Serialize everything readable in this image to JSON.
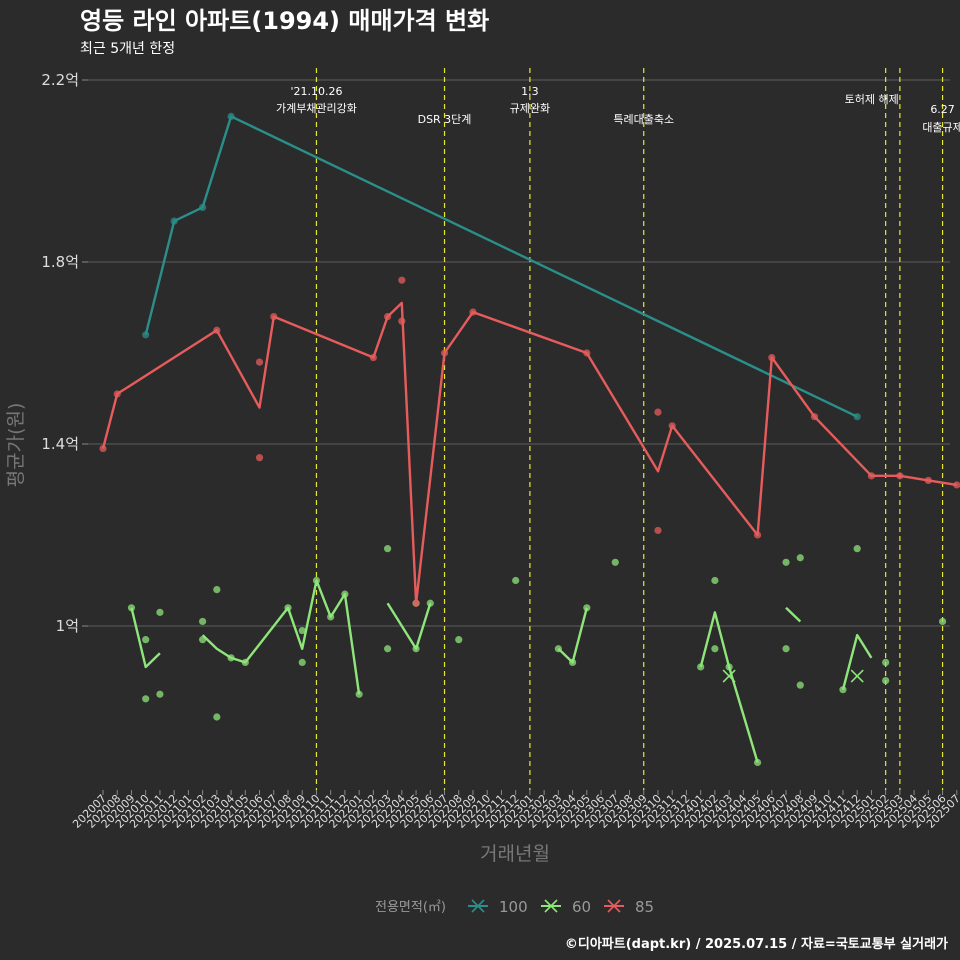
{
  "title": "영등 라인 아파트(1994) 매매가격 변화",
  "subtitle": "최근 5개년 한정",
  "caption": "©디아파트(dapt.kr) / 2025.07.15 / 자료=국토교통부 실거래가",
  "colors": {
    "bg": "#2b2b2b",
    "grid": "#5c5c5c",
    "event": "#e8e832",
    "s100": "#2a8f8a",
    "s60": "#8ee67a",
    "s85": "#e65c5c"
  },
  "chart_data": {
    "type": "line",
    "xlabel": "거래년월",
    "ylabel": "평균가(원)",
    "yticks": [
      {
        "v": 1.0,
        "label": "1억"
      },
      {
        "v": 1.4,
        "label": "1.4억"
      },
      {
        "v": 1.8,
        "label": "1.8억"
      },
      {
        "v": 2.2,
        "label": "2.2억"
      }
    ],
    "ylim": [
      0.64,
      2.22
    ],
    "ylim_unit": "억",
    "grid": true,
    "legend_position": "bottom",
    "x_categories": [
      "202007",
      "202008",
      "202009",
      "202010",
      "202011",
      "202012",
      "202101",
      "202102",
      "202103",
      "202104",
      "202105",
      "202106",
      "202107",
      "202108",
      "202109",
      "202110",
      "202111",
      "202112",
      "202201",
      "202202",
      "202203",
      "202204",
      "202205",
      "202206",
      "202207",
      "202208",
      "202209",
      "202210",
      "202211",
      "202212",
      "202301",
      "202302",
      "202303",
      "202304",
      "202305",
      "202306",
      "202307",
      "202308",
      "202309",
      "202310",
      "202311",
      "202312",
      "202401",
      "202402",
      "202403",
      "202404",
      "202405",
      "202406",
      "202407",
      "202408",
      "202409",
      "202410",
      "202411",
      "202412",
      "202501",
      "202502",
      "202503",
      "202504",
      "202505",
      "202506",
      "202507"
    ],
    "events": [
      {
        "x": "202110",
        "lines": [
          "'21.10.26",
          "가계부채관리강화"
        ]
      },
      {
        "x": "202207",
        "lines": [
          "DSR 3단계"
        ]
      },
      {
        "x": "202301",
        "lines": [
          "1.3",
          "규제완화"
        ]
      },
      {
        "x": "202309",
        "lines": [
          "특례대출축소"
        ]
      },
      {
        "x": "202502",
        "lines": [
          "토허제 해제"
        ]
      },
      {
        "x": "202503",
        "lines": []
      },
      {
        "x": "202506",
        "lines": [
          "6.27",
          "대출규제"
        ]
      }
    ],
    "legend_title": "전용면적(㎡)",
    "series": [
      {
        "name": "100",
        "color": "#2a8f8a",
        "line": [
          [
            "202010",
            1.64
          ],
          [
            "202012",
            1.89
          ],
          [
            "202102",
            1.92
          ],
          [
            "202104",
            2.12
          ],
          [
            "202412",
            1.46
          ]
        ],
        "points": [
          [
            "202010",
            1.64
          ],
          [
            "202012",
            1.89
          ],
          [
            "202102",
            1.92
          ],
          [
            "202104",
            2.12
          ],
          [
            "202412",
            1.46
          ]
        ],
        "crosses": []
      },
      {
        "name": "60",
        "color": "#8ee67a",
        "line": [
          [
            [
              "202009",
              1.04
            ],
            [
              "202010",
              0.91
            ],
            [
              "202011",
              0.94
            ]
          ],
          [
            [
              "202102",
              0.98
            ],
            [
              "202103",
              0.95
            ],
            [
              "202104",
              0.93
            ],
            [
              "202105",
              0.92
            ],
            [
              "202108",
              1.04
            ],
            [
              "202109",
              0.95
            ],
            [
              "202110",
              1.1
            ],
            [
              "202111",
              1.02
            ],
            [
              "202112",
              1.07
            ],
            [
              "202201",
              0.85
            ]
          ],
          [
            [
              "202203",
              1.05
            ],
            [
              "202205",
              0.95
            ],
            [
              "202206",
              1.05
            ]
          ],
          [
            [
              "202303",
              0.95
            ],
            [
              "202304",
              0.92
            ],
            [
              "202305",
              1.04
            ]
          ],
          [
            [
              "202401",
              0.91
            ],
            [
              "202402",
              1.03
            ],
            [
              "202403",
              0.91
            ],
            [
              "202405",
              0.7
            ]
          ],
          [
            [
              "202407",
              1.04
            ],
            [
              "202408",
              1.01
            ]
          ],
          [
            [
              "202411",
              0.86
            ],
            [
              "202412",
              0.98
            ],
            [
              "202501",
              0.93
            ]
          ]
        ],
        "points": [
          [
            "202009",
            1.04
          ],
          [
            "202010",
            0.97
          ],
          [
            "202010",
            0.84
          ],
          [
            "202011",
            1.03
          ],
          [
            "202011",
            0.85
          ],
          [
            "202102",
            1.01
          ],
          [
            "202102",
            0.97
          ],
          [
            "202103",
            1.08
          ],
          [
            "202103",
            0.8
          ],
          [
            "202104",
            0.93
          ],
          [
            "202105",
            0.92
          ],
          [
            "202108",
            1.04
          ],
          [
            "202109",
            0.99
          ],
          [
            "202109",
            0.92
          ],
          [
            "202110",
            1.1
          ],
          [
            "202111",
            1.02
          ],
          [
            "202112",
            1.07
          ],
          [
            "202201",
            0.85
          ],
          [
            "202203",
            1.17
          ],
          [
            "202203",
            0.95
          ],
          [
            "202205",
            1.05
          ],
          [
            "202205",
            0.95
          ],
          [
            "202206",
            1.05
          ],
          [
            "202208",
            0.97
          ],
          [
            "202212",
            1.1
          ],
          [
            "202303",
            0.95
          ],
          [
            "202304",
            0.92
          ],
          [
            "202305",
            1.04
          ],
          [
            "202307",
            1.14
          ],
          [
            "202401",
            0.91
          ],
          [
            "202402",
            1.1
          ],
          [
            "202402",
            0.95
          ],
          [
            "202403",
            0.91
          ],
          [
            "202405",
            0.7
          ],
          [
            "202407",
            1.14
          ],
          [
            "202407",
            0.95
          ],
          [
            "202408",
            1.15
          ],
          [
            "202408",
            0.87
          ],
          [
            "202411",
            0.86
          ],
          [
            "202412",
            1.17
          ],
          [
            "202502",
            0.88
          ],
          [
            "202502",
            0.92
          ],
          [
            "202506",
            1.01
          ]
        ],
        "crosses": [
          [
            "202403",
            0.89
          ],
          [
            "202412",
            0.89
          ]
        ]
      },
      {
        "name": "85",
        "color": "#e65c5c",
        "line": [
          [
            "202007",
            1.39
          ],
          [
            "202008",
            1.51
          ],
          [
            "202103",
            1.65
          ],
          [
            "202106",
            1.48
          ],
          [
            "202107",
            1.68
          ],
          [
            "202202",
            1.59
          ],
          [
            "202203",
            1.68
          ],
          [
            "202204",
            1.71
          ],
          [
            "202205",
            1.05
          ],
          [
            "202207",
            1.6
          ],
          [
            "202209",
            1.69
          ],
          [
            "202305",
            1.6
          ],
          [
            "202310",
            1.34
          ],
          [
            "202311",
            1.44
          ],
          [
            "202405",
            1.2
          ],
          [
            "202406",
            1.59
          ],
          [
            "202409",
            1.46
          ],
          [
            "202501",
            1.33
          ],
          [
            "202503",
            1.33
          ],
          [
            "202505",
            1.32
          ],
          [
            "202507",
            1.31
          ]
        ],
        "points": [
          [
            "202007",
            1.39
          ],
          [
            "202008",
            1.51
          ],
          [
            "202103",
            1.65
          ],
          [
            "202106",
            1.58
          ],
          [
            "202106",
            1.37
          ],
          [
            "202107",
            1.68
          ],
          [
            "202202",
            1.59
          ],
          [
            "202203",
            1.68
          ],
          [
            "202204",
            1.76
          ],
          [
            "202204",
            1.67
          ],
          [
            "202205",
            1.05
          ],
          [
            "202207",
            1.6
          ],
          [
            "202209",
            1.69
          ],
          [
            "202305",
            1.6
          ],
          [
            "202310",
            1.47
          ],
          [
            "202310",
            1.21
          ],
          [
            "202311",
            1.44
          ],
          [
            "202405",
            1.2
          ],
          [
            "202406",
            1.59
          ],
          [
            "202409",
            1.46
          ],
          [
            "202501",
            1.33
          ],
          [
            "202503",
            1.33
          ],
          [
            "202505",
            1.32
          ],
          [
            "202507",
            1.31
          ]
        ],
        "crosses": []
      }
    ]
  }
}
